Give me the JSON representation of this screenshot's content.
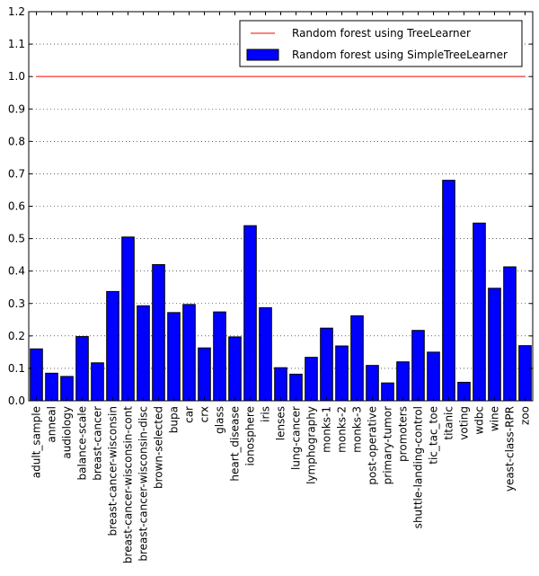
{
  "chart_data": {
    "type": "bar",
    "title": "",
    "xlabel": "",
    "ylabel": "",
    "ylim": [
      0,
      1.2
    ],
    "yticks": [
      "0.0",
      "0.1",
      "0.2",
      "0.3",
      "0.4",
      "0.5",
      "0.6",
      "0.7",
      "0.8",
      "0.9",
      "1.0",
      "1.1",
      "1.2"
    ],
    "grid": "horizontal dotted",
    "legend_position": "top-right",
    "categories": [
      "adult_sample",
      "anneal",
      "audiology",
      "balance-scale",
      "breast-cancer",
      "breast-cancer-wisconsin",
      "breast-cancer-wisconsin-cont",
      "breast-cancer-wisconsin-disc",
      "brown-selected",
      "bupa",
      "car",
      "crx",
      "glass",
      "heart_disease",
      "ionosphere",
      "iris",
      "lenses",
      "lung-cancer",
      "lymphography",
      "monks-1",
      "monks-2",
      "monks-3",
      "post-operative",
      "primary-tumor",
      "promoters",
      "shuttle-landing-control",
      "tic_tac_toe",
      "titanic",
      "voting",
      "wdbc",
      "wine",
      "yeast-class-RPR",
      "zoo"
    ],
    "series": [
      {
        "name": "Random forest using TreeLearner",
        "kind": "line",
        "color": "#ff0000",
        "values": [
          1.0,
          1.0,
          1.0,
          1.0,
          1.0,
          1.0,
          1.0,
          1.0,
          1.0,
          1.0,
          1.0,
          1.0,
          1.0,
          1.0,
          1.0,
          1.0,
          1.0,
          1.0,
          1.0,
          1.0,
          1.0,
          1.0,
          1.0,
          1.0,
          1.0,
          1.0,
          1.0,
          1.0,
          1.0,
          1.0,
          1.0,
          1.0,
          1.0
        ]
      },
      {
        "name": "Random forest using SimpleTreeLearner",
        "kind": "bar",
        "color": "#0000ff",
        "values": [
          0.16,
          0.085,
          0.075,
          0.198,
          0.117,
          0.337,
          0.505,
          0.293,
          0.42,
          0.272,
          0.297,
          0.163,
          0.274,
          0.197,
          0.54,
          0.287,
          0.102,
          0.082,
          0.134,
          0.224,
          0.169,
          0.262,
          0.109,
          0.055,
          0.12,
          0.217,
          0.15,
          0.68,
          0.057,
          0.548,
          0.347,
          0.413,
          0.17
        ]
      }
    ]
  }
}
